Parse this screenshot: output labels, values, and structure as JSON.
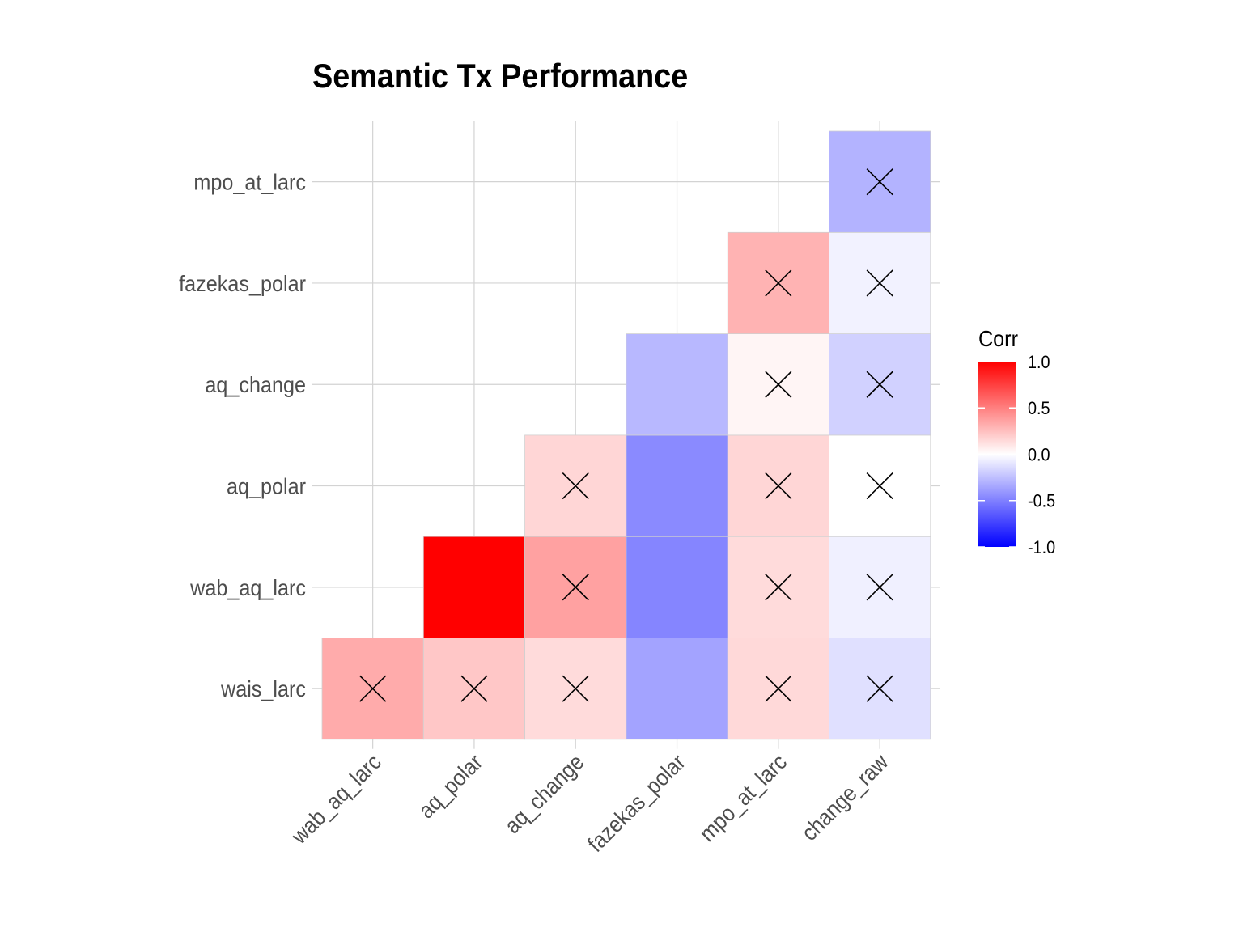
{
  "chart_data": {
    "type": "heatmap",
    "title": "Semantic Tx Performance",
    "xlabel": "",
    "ylabel": "",
    "x_categories": [
      "wab_aq_larc",
      "aq_polar",
      "aq_change",
      "fazekas_polar",
      "mpo_at_larc",
      "change_raw"
    ],
    "y_categories": [
      "wais_larc",
      "wab_aq_larc",
      "aq_polar",
      "aq_change",
      "fazekas_polar",
      "mpo_at_larc"
    ],
    "cells": [
      {
        "x": "wab_aq_larc",
        "y": "wais_larc",
        "value": 0.33,
        "insignificant": true
      },
      {
        "x": "aq_polar",
        "y": "wais_larc",
        "value": 0.22,
        "insignificant": true
      },
      {
        "x": "aq_change",
        "y": "wais_larc",
        "value": 0.14,
        "insignificant": true
      },
      {
        "x": "fazekas_polar",
        "y": "wais_larc",
        "value": -0.36,
        "insignificant": false
      },
      {
        "x": "mpo_at_larc",
        "y": "wais_larc",
        "value": 0.15,
        "insignificant": true
      },
      {
        "x": "change_raw",
        "y": "wais_larc",
        "value": -0.12,
        "insignificant": true
      },
      {
        "x": "aq_polar",
        "y": "wab_aq_larc",
        "value": 1.0,
        "insignificant": false
      },
      {
        "x": "aq_change",
        "y": "wab_aq_larc",
        "value": 0.37,
        "insignificant": true
      },
      {
        "x": "fazekas_polar",
        "y": "wab_aq_larc",
        "value": -0.48,
        "insignificant": false
      },
      {
        "x": "mpo_at_larc",
        "y": "wab_aq_larc",
        "value": 0.14,
        "insignificant": true
      },
      {
        "x": "change_raw",
        "y": "wab_aq_larc",
        "value": -0.06,
        "insignificant": true
      },
      {
        "x": "aq_change",
        "y": "aq_polar",
        "value": 0.16,
        "insignificant": true
      },
      {
        "x": "fazekas_polar",
        "y": "aq_polar",
        "value": -0.46,
        "insignificant": false
      },
      {
        "x": "mpo_at_larc",
        "y": "aq_polar",
        "value": 0.16,
        "insignificant": true
      },
      {
        "x": "change_raw",
        "y": "aq_polar",
        "value": 0.0,
        "insignificant": true
      },
      {
        "x": "fazekas_polar",
        "y": "aq_change",
        "value": -0.28,
        "insignificant": false
      },
      {
        "x": "mpo_at_larc",
        "y": "aq_change",
        "value": 0.04,
        "insignificant": true
      },
      {
        "x": "change_raw",
        "y": "aq_change",
        "value": -0.18,
        "insignificant": true
      },
      {
        "x": "mpo_at_larc",
        "y": "fazekas_polar",
        "value": 0.3,
        "insignificant": true
      },
      {
        "x": "change_raw",
        "y": "fazekas_polar",
        "value": -0.05,
        "insignificant": true
      },
      {
        "x": "change_raw",
        "y": "mpo_at_larc",
        "value": -0.3,
        "insignificant": true
      }
    ],
    "color_scale": {
      "low": "#0000FF",
      "mid": "#FFFFFF",
      "high": "#FF0000",
      "limits": [
        -1,
        1
      ]
    },
    "legend": {
      "title": "Corr",
      "ticks": [
        "1.0",
        "0.5",
        "0.0",
        "-0.5",
        "-1.0"
      ],
      "tick_values": [
        1.0,
        0.5,
        0.0,
        -0.5,
        -1.0
      ],
      "placement": "right"
    },
    "grid": true,
    "cell_border_color": "#D0D0D0",
    "grid_color": "#D3D3D3",
    "axis_text_color": "#4D4D4D"
  }
}
